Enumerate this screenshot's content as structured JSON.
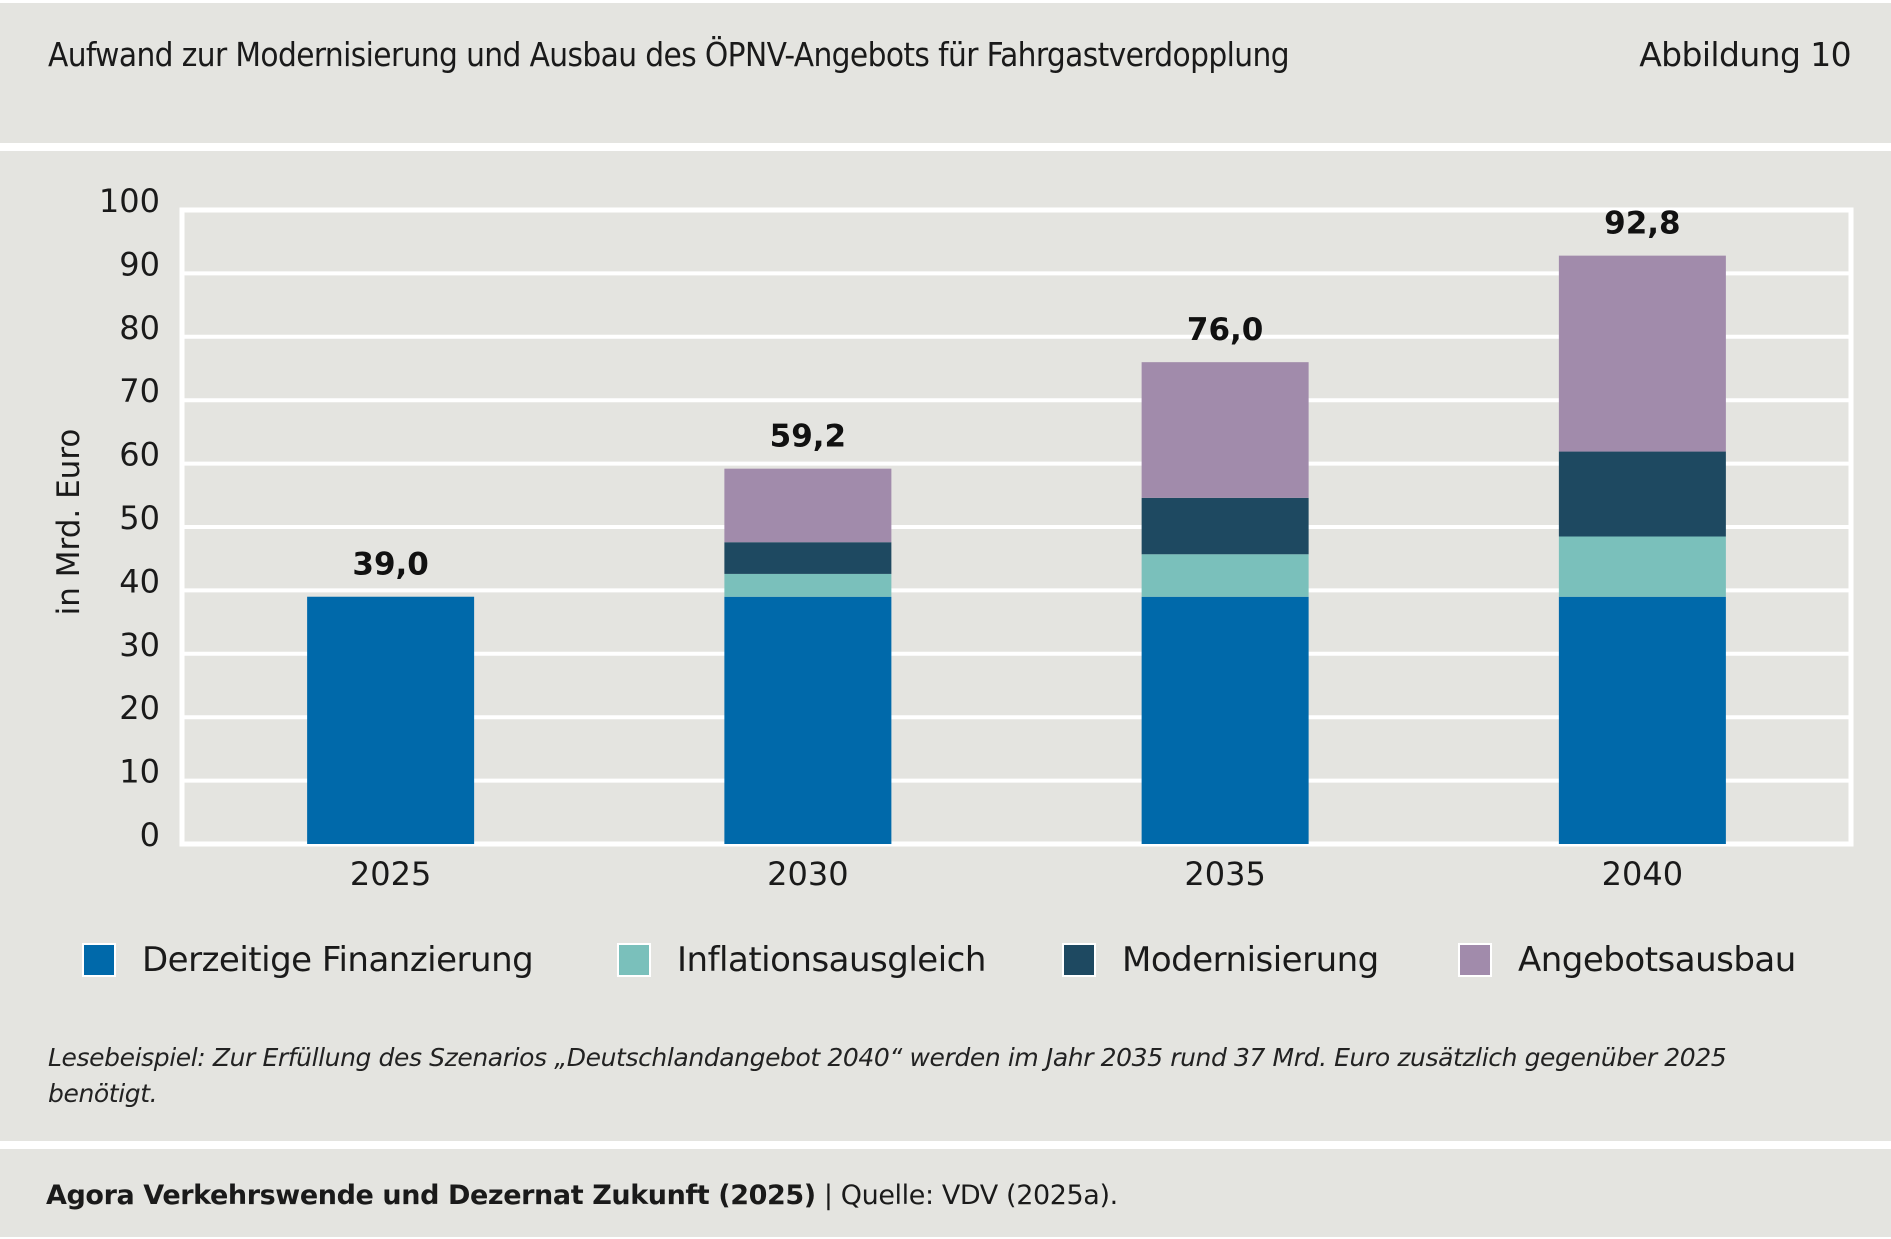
{
  "header": {
    "title": "Aufwand zur Modernisierung und Ausbau des ÖPNV-Angebots für Fahrgastverdopplung",
    "figure_number": "Abbildung 10"
  },
  "chart_data": {
    "type": "bar",
    "stacked": true,
    "title": "Aufwand zur Modernisierung und Ausbau des ÖPNV-Angebots für Fahrgastverdopplung",
    "xlabel": "",
    "ylabel": "in Mrd. Euro",
    "ylim": [
      0,
      100
    ],
    "yticks": [
      0,
      10,
      20,
      30,
      40,
      50,
      60,
      70,
      80,
      90,
      100
    ],
    "grid": true,
    "categories": [
      "2025",
      "2030",
      "2035",
      "2040"
    ],
    "series": [
      {
        "name": "Derzeitige Finanzierung",
        "color": "#0069aa",
        "values": [
          39.0,
          39.0,
          39.0,
          39.0
        ]
      },
      {
        "name": "Inflationsausgleich",
        "color": "#7ac0bb",
        "values": [
          0,
          3.6,
          6.7,
          9.5
        ]
      },
      {
        "name": "Modernisierung",
        "color": "#1e4961",
        "values": [
          0,
          5.0,
          8.9,
          13.4
        ]
      },
      {
        "name": "Angebotsausbau",
        "color": "#a18bab",
        "values": [
          0,
          11.6,
          21.4,
          30.9
        ]
      }
    ],
    "totals": [
      39.0,
      59.2,
      76.0,
      92.8
    ],
    "total_labels": [
      "39,0",
      "59,2",
      "76,0",
      "92,8"
    ],
    "legend_position": "bottom"
  },
  "note": "Lesebeispiel: Zur Erfüllung des Szenarios „Deutschlandangebot 2040“ werden im Jahr 2035 rund 37 Mrd. Euro zusätzlich gegenüber 2025 benötigt.",
  "footer": {
    "authors": "Agora Verkehrswende und Dezernat Zukunft (2025)",
    "separator": " | ",
    "source": "Quelle: VDV (2025a)."
  }
}
